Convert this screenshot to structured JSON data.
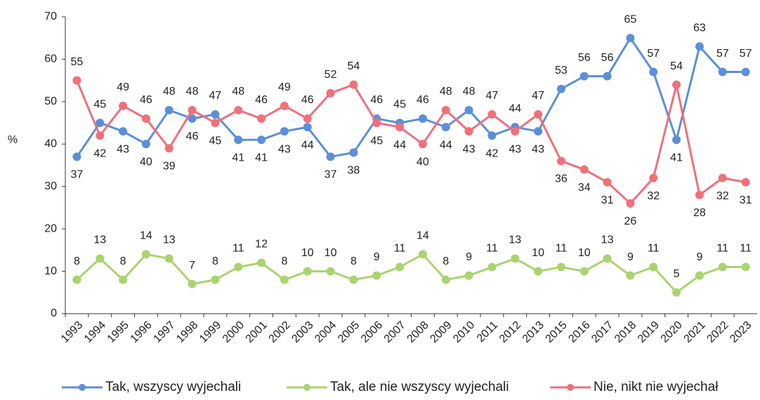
{
  "chart_data": {
    "type": "line",
    "ylabel": "%",
    "categories": [
      "1993",
      "1994",
      "1995",
      "1996",
      "1997",
      "1998",
      "1999",
      "2000",
      "2001",
      "2002",
      "2003",
      "2004",
      "2005",
      "2006",
      "2007",
      "2008",
      "2009",
      "2010",
      "2011",
      "2012",
      "2013",
      "2015",
      "2016",
      "2017",
      "2018",
      "2019",
      "2020",
      "2021",
      "2022",
      "2023"
    ],
    "series": [
      {
        "name": "Tak, wszyscy wyjechali",
        "color": "#5b8fd9",
        "values": [
          37,
          45,
          43,
          40,
          48,
          46,
          47,
          41,
          41,
          43,
          44,
          37,
          38,
          46,
          45,
          46,
          44,
          48,
          42,
          44,
          43,
          53,
          56,
          56,
          65,
          57,
          41,
          63,
          57,
          57
        ]
      },
      {
        "name": "Tak, ale nie wszyscy wyjechali",
        "color": "#a9d46f",
        "values": [
          8,
          13,
          8,
          14,
          13,
          7,
          8,
          11,
          12,
          8,
          10,
          10,
          8,
          9,
          11,
          14,
          8,
          9,
          11,
          13,
          10,
          11,
          10,
          13,
          9,
          11,
          5,
          9,
          11,
          11
        ]
      },
      {
        "name": "Nie, nikt nie wyjechał",
        "color": "#f0707a",
        "values": [
          55,
          42,
          49,
          46,
          39,
          48,
          45,
          48,
          46,
          49,
          46,
          52,
          54,
          45,
          44,
          40,
          48,
          43,
          47,
          43,
          47,
          36,
          34,
          31,
          26,
          32,
          54,
          28,
          32,
          31
        ]
      }
    ],
    "ylim": [
      0,
      70
    ],
    "yticks": [
      0,
      10,
      20,
      30,
      40,
      50,
      60,
      70
    ],
    "legend": "bottom"
  }
}
